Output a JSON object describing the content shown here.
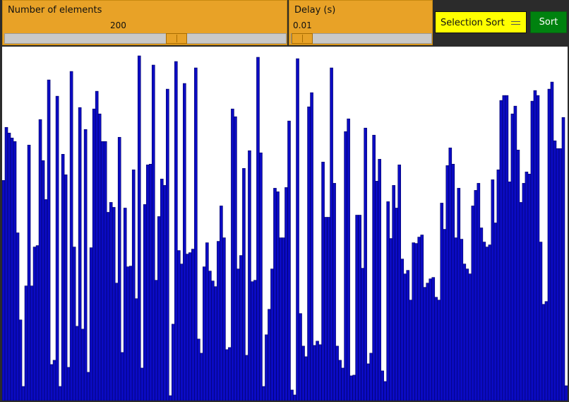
{
  "elements_panel": {
    "label": "Number of elements",
    "value": "200",
    "slider_fraction": 0.62
  },
  "delay_panel": {
    "label": "Delay (s)",
    "value": "0.01",
    "slider_fraction": 0.0
  },
  "algorithm_select": {
    "selected": "Selection Sort"
  },
  "sort_button": {
    "label": "Sort"
  },
  "colors": {
    "bar_fill": "#0b0bc4",
    "bar_stroke": "#000060",
    "canvas_bg": "#ffffff",
    "accent": "#e8a227",
    "select_bg": "#ffff00",
    "sort_bg": "#00820f"
  },
  "chart_data": {
    "type": "bar",
    "max_value": 500,
    "values": [
      311,
      386,
      378,
      371,
      366,
      237,
      114,
      20,
      162,
      361,
      162,
      217,
      219,
      397,
      339,
      284,
      453,
      51,
      57,
      430,
      20,
      348,
      319,
      47,
      465,
      217,
      105,
      414,
      101,
      383,
      40,
      216,
      412,
      437,
      405,
      366,
      366,
      266,
      280,
      273,
      166,
      372,
      68,
      272,
      189,
      190,
      326,
      144,
      487,
      46,
      277,
      333,
      334,
      474,
      170,
      260,
      313,
      304,
      440,
      7,
      108,
      479,
      212,
      193,
      448,
      207,
      209,
      214,
      470,
      87,
      67,
      189,
      223,
      183,
      169,
      161,
      225,
      275,
      230,
      72,
      75,
      412,
      401,
      186,
      205,
      328,
      64,
      353,
      168,
      170,
      485,
      350,
      20,
      93,
      129,
      186,
      300,
      295,
      230,
      230,
      301,
      395,
      15,
      8,
      483,
      123,
      77,
      62,
      415,
      435,
      78,
      84,
      79,
      337,
      259,
      259,
      470,
      307,
      77,
      57,
      46,
      380,
      398,
      35,
      36,
      262,
      262,
      187,
      385,
      52,
      67,
      375,
      310,
      341,
      42,
      27,
      281,
      229,
      304,
      272,
      333,
      200,
      179,
      184,
      142,
      223,
      222,
      231,
      234,
      160,
      166,
      172,
      174,
      146,
      142,
      279,
      242,
      332,
      357,
      334,
      230,
      300,
      228,
      193,
      186,
      179,
      275,
      297,
      307,
      244,
      224,
      217,
      220,
      312,
      251,
      326,
      424,
      431,
      431,
      309,
      405,
      416,
      354,
      280,
      307,
      323,
      320,
      423,
      438,
      431,
      224,
      136,
      140,
      440,
      450,
      367,
      356,
      356,
      400,
      21
    ],
    "bar_count": 200
  }
}
